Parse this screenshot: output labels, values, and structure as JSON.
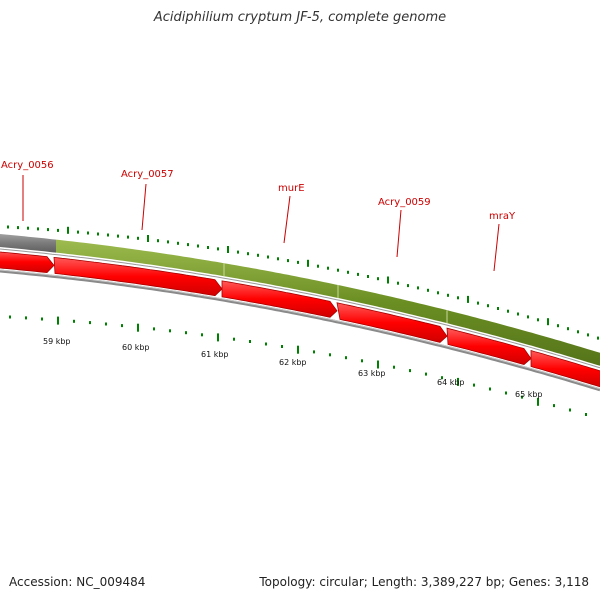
{
  "title": "Acidiphilium cryptum JF-5, complete genome",
  "footer": {
    "accession": "Accession: NC_009484",
    "summary": "Topology: circular; Length: 3,389,227 bp; Genes: 3,118"
  },
  "colors": {
    "gene_label": "#cc0000",
    "gene_fill": "#ff0000",
    "gene_stroke": "#aa0000",
    "band_green": "#6b8e23",
    "band_gray": "#7a7a7a",
    "tick_green": "#008000",
    "track_outline": "#808080"
  },
  "genes": [
    {
      "name": "Acry_0056"
    },
    {
      "name": "Acry_0057"
    },
    {
      "name": "murE"
    },
    {
      "name": "Acry_0059"
    },
    {
      "name": "mraY"
    }
  ],
  "scale_labels": [
    "59 kbp",
    "60 kbp",
    "61 kbp",
    "62 kbp",
    "63 kbp",
    "64 kbp",
    "65 kbp"
  ]
}
